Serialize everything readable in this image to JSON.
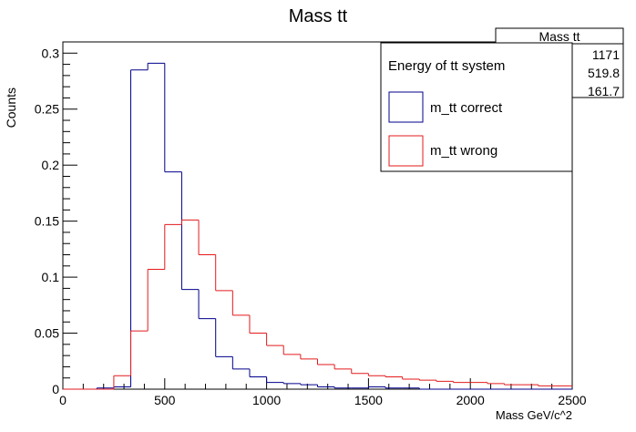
{
  "chart_data": {
    "type": "histogram",
    "title": "Mass tt",
    "xlabel": "Mass GeV/c^2",
    "ylabel": "Counts",
    "xlim": [
      0,
      2500
    ],
    "ylim": [
      0,
      0.31
    ],
    "bin_width": 83.33,
    "x_ticks": [
      0,
      500,
      1000,
      1500,
      2000,
      2500
    ],
    "x_tick_labels": [
      "0",
      "500",
      "1000",
      "1500",
      "2000",
      "2500"
    ],
    "y_ticks": [
      0,
      0.05,
      0.1,
      0.15,
      0.2,
      0.25,
      0.3
    ],
    "y_tick_labels": [
      "0",
      "0.05",
      "0.1",
      "0.15",
      "0.2",
      "0.25",
      "0.3"
    ],
    "bin_edges": [
      0,
      83.33,
      166.67,
      250,
      333.33,
      416.67,
      500,
      583.33,
      666.67,
      750,
      833.33,
      916.67,
      1000,
      1083.33,
      1166.67,
      1250,
      1333.33,
      1416.67,
      1500,
      1583.33,
      1666.67,
      1750,
      1833.33,
      1916.67,
      2000,
      2083.33,
      2166.67,
      2250,
      2333.33,
      2416.67,
      2500
    ],
    "series": [
      {
        "name": "m_tt correct",
        "color": "#00008b",
        "values": [
          0,
          0,
          0.001,
          0.002,
          0.285,
          0.291,
          0.194,
          0.089,
          0.063,
          0.029,
          0.018,
          0.011,
          0.006,
          0.005,
          0.004,
          0.002,
          0.001,
          0.001,
          0.002,
          0.001,
          0.001,
          0,
          0,
          0,
          0,
          0,
          0,
          0,
          0,
          0
        ]
      },
      {
        "name": "m_tt wrong",
        "color": "#e31a1c",
        "values": [
          0,
          0,
          0,
          0.012,
          0.052,
          0.107,
          0.147,
          0.151,
          0.12,
          0.088,
          0.066,
          0.05,
          0.039,
          0.031,
          0.027,
          0.022,
          0.018,
          0.014,
          0.012,
          0.011,
          0.009,
          0.008,
          0.007,
          0.006,
          0.006,
          0.005,
          0.004,
          0.004,
          0.003,
          0.003
        ]
      }
    ],
    "legend": {
      "title": "Energy of tt system",
      "position": "top-right"
    },
    "stats_box": {
      "title": "Mass tt",
      "values": [
        "1171",
        "519.8",
        "161.7"
      ]
    }
  }
}
